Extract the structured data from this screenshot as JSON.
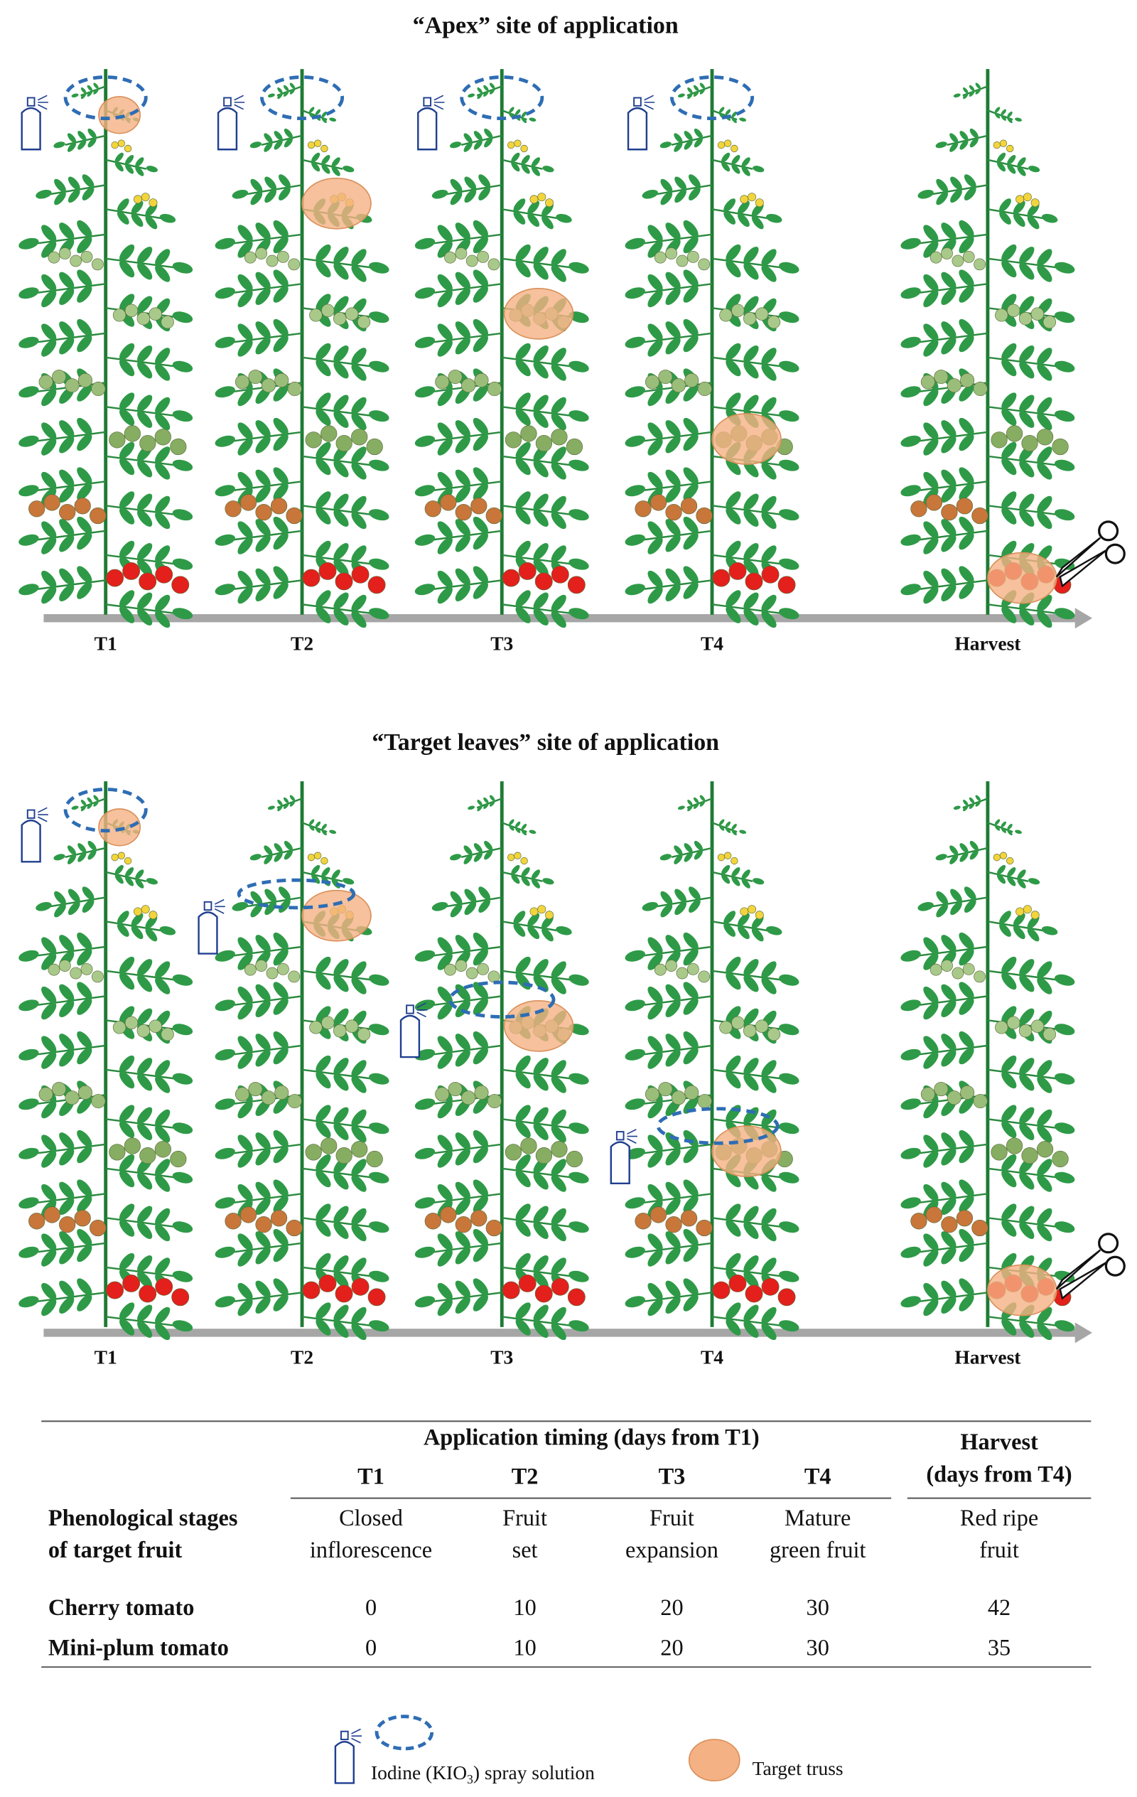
{
  "panels": [
    {
      "title": "“Apex” site of application",
      "time_labels": [
        "T1",
        "T2",
        "T3",
        "T4",
        "Harvest"
      ]
    },
    {
      "title": "“Target leaves” site of application",
      "time_labels": [
        "T1",
        "T2",
        "T3",
        "T4",
        "Harvest"
      ]
    }
  ],
  "table": {
    "timing_header": "Application timing (days from T1)",
    "harvest_header": [
      "Harvest",
      "(days from T4)"
    ],
    "columns": [
      "T1",
      "T2",
      "T3",
      "T4"
    ],
    "stage_label": [
      "Phenological stages",
      "of target fruit"
    ],
    "stages": [
      [
        "Closed",
        "inflorescence"
      ],
      [
        "Fruit",
        "set"
      ],
      [
        "Fruit",
        "expansion"
      ],
      [
        "Mature",
        "green fruit"
      ],
      [
        "Red ripe",
        "fruit"
      ]
    ],
    "rows": [
      {
        "name": "Cherry tomato",
        "values": [
          0,
          10,
          20,
          30,
          42
        ]
      },
      {
        "name": "Mini-plum tomato",
        "values": [
          0,
          10,
          20,
          30,
          35
        ]
      }
    ]
  },
  "legend": {
    "spray": [
      "Iodine (KIO",
      "3",
      ") spray solution"
    ],
    "target": "Target truss"
  }
}
